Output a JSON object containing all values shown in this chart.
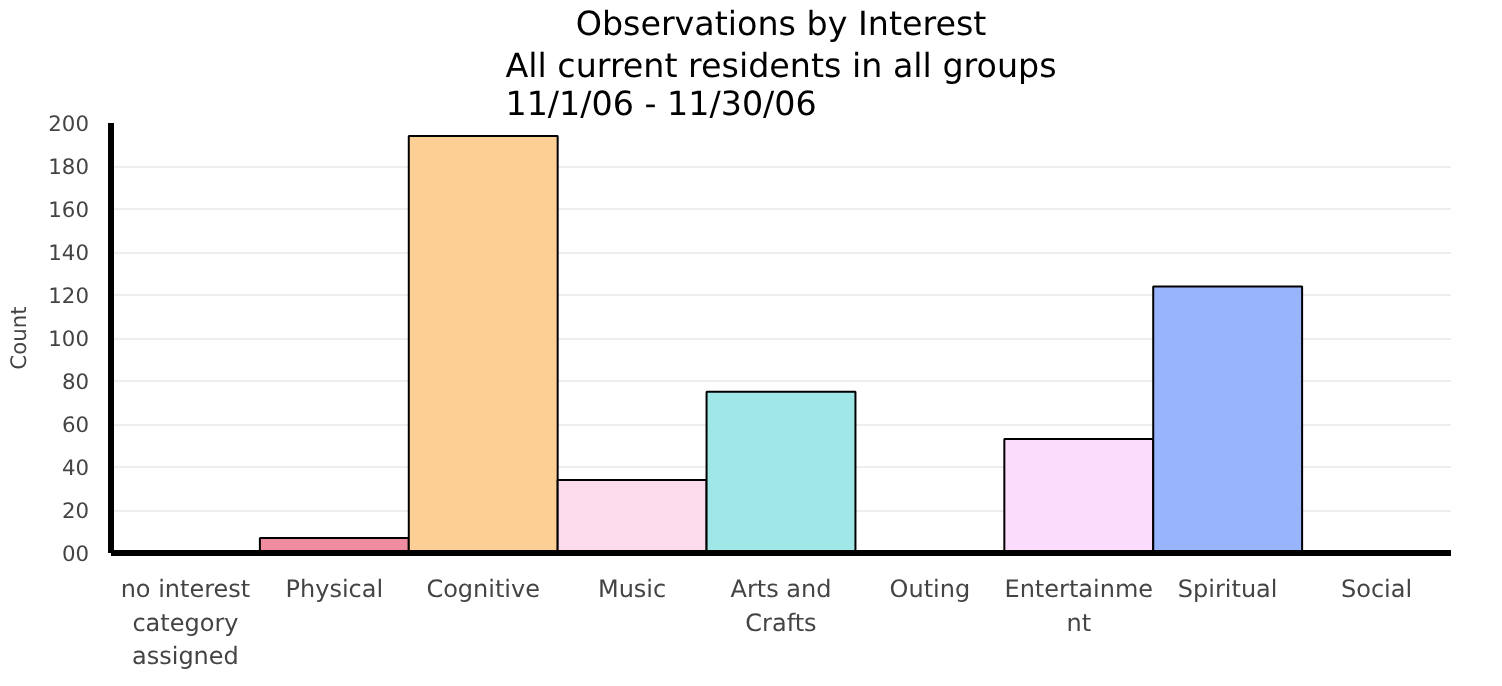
{
  "chart_data": {
    "type": "bar",
    "title": "Observations by Interest",
    "subtitle": "All current residents in all groups\n11/1/06 - 11/30/06",
    "ylabel": "Count",
    "categories": [
      "no interest category assigned",
      "Physical",
      "Cognitive",
      "Music",
      "Arts and Crafts",
      "Outing",
      "Entertainment",
      "Spiritual",
      "Social"
    ],
    "values": [
      0,
      7,
      194,
      34,
      75,
      0,
      53,
      124,
      0
    ],
    "colors": [
      "#000000",
      "#f08ca0",
      "#fccf94",
      "#fcdcec",
      "#a0e8e8",
      "#000000",
      "#fcdcfc",
      "#98b4fc",
      "#000000"
    ],
    "ylim": [
      0,
      200
    ],
    "yticks": [
      {
        "value": 0,
        "label": "00"
      },
      20,
      40,
      60,
      80,
      100,
      120,
      140,
      160,
      180,
      200
    ],
    "grid": "y"
  }
}
